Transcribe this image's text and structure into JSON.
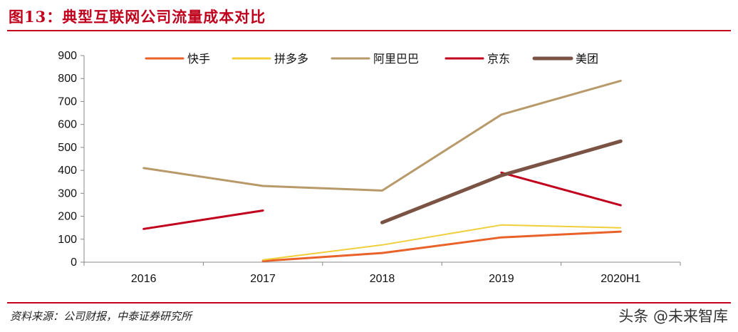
{
  "header": {
    "title": "图13：典型互联网公司流量成本对比"
  },
  "footer": {
    "source": "资料来源：公司财报，中泰证券研究所",
    "watermark": "头条 @未来智库"
  },
  "chart_data": {
    "type": "line",
    "categories": [
      "2016",
      "2017",
      "2018",
      "2019",
      "2020H1"
    ],
    "ylim": [
      0,
      900
    ],
    "yticks": [
      0,
      100,
      200,
      300,
      400,
      500,
      600,
      700,
      800,
      900
    ],
    "title": "",
    "xlabel": "",
    "ylabel": "",
    "legend_position": "top",
    "grid": false,
    "series": [
      {
        "name": "快手",
        "color": "#e8622a",
        "values": [
          null,
          5,
          40,
          108,
          133
        ]
      },
      {
        "name": "拼多多",
        "color": "#f0cf3a",
        "values": [
          null,
          10,
          75,
          162,
          150
        ]
      },
      {
        "name": "阿里巴巴",
        "color": "#b89a6a",
        "values": [
          410,
          332,
          312,
          643,
          790
        ]
      },
      {
        "name": "京东",
        "color": "#c0001c",
        "segments": [
          [
            [
              0,
              145
            ],
            [
              1,
              225
            ]
          ],
          [
            [
              3,
              390
            ],
            [
              4,
              248
            ]
          ]
        ],
        "values": [
          145,
          225,
          null,
          390,
          248
        ]
      },
      {
        "name": "美团",
        "color": "#7a5344",
        "values": [
          null,
          null,
          173,
          378,
          527
        ]
      }
    ]
  }
}
